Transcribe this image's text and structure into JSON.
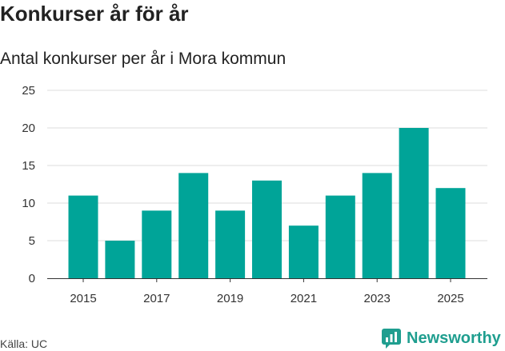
{
  "title": "Konkurser år för år",
  "subtitle": "Antal konkurser per år i Mora kommun",
  "source": "Källa: UC",
  "brand": "Newsworthy",
  "colors": {
    "bar": "#00a498",
    "grid": "#dddddd",
    "axis": "#333333",
    "brand": "#1f9e8f"
  },
  "chart_data": {
    "type": "bar",
    "title": "Konkurser år för år",
    "subtitle": "Antal konkurser per år i Mora kommun",
    "categories": [
      2015,
      2016,
      2017,
      2018,
      2019,
      2020,
      2021,
      2022,
      2023,
      2024,
      2025
    ],
    "values": [
      11,
      5,
      9,
      14,
      9,
      13,
      7,
      11,
      14,
      20,
      12
    ],
    "xticks": [
      "2015",
      "2017",
      "2019",
      "2021",
      "2023",
      "2025"
    ],
    "yticks": [
      "0",
      "5",
      "10",
      "15",
      "20",
      "25"
    ],
    "ylim": [
      0,
      25
    ],
    "xlabel": "",
    "ylabel": "",
    "grid": true,
    "legend": "none"
  }
}
